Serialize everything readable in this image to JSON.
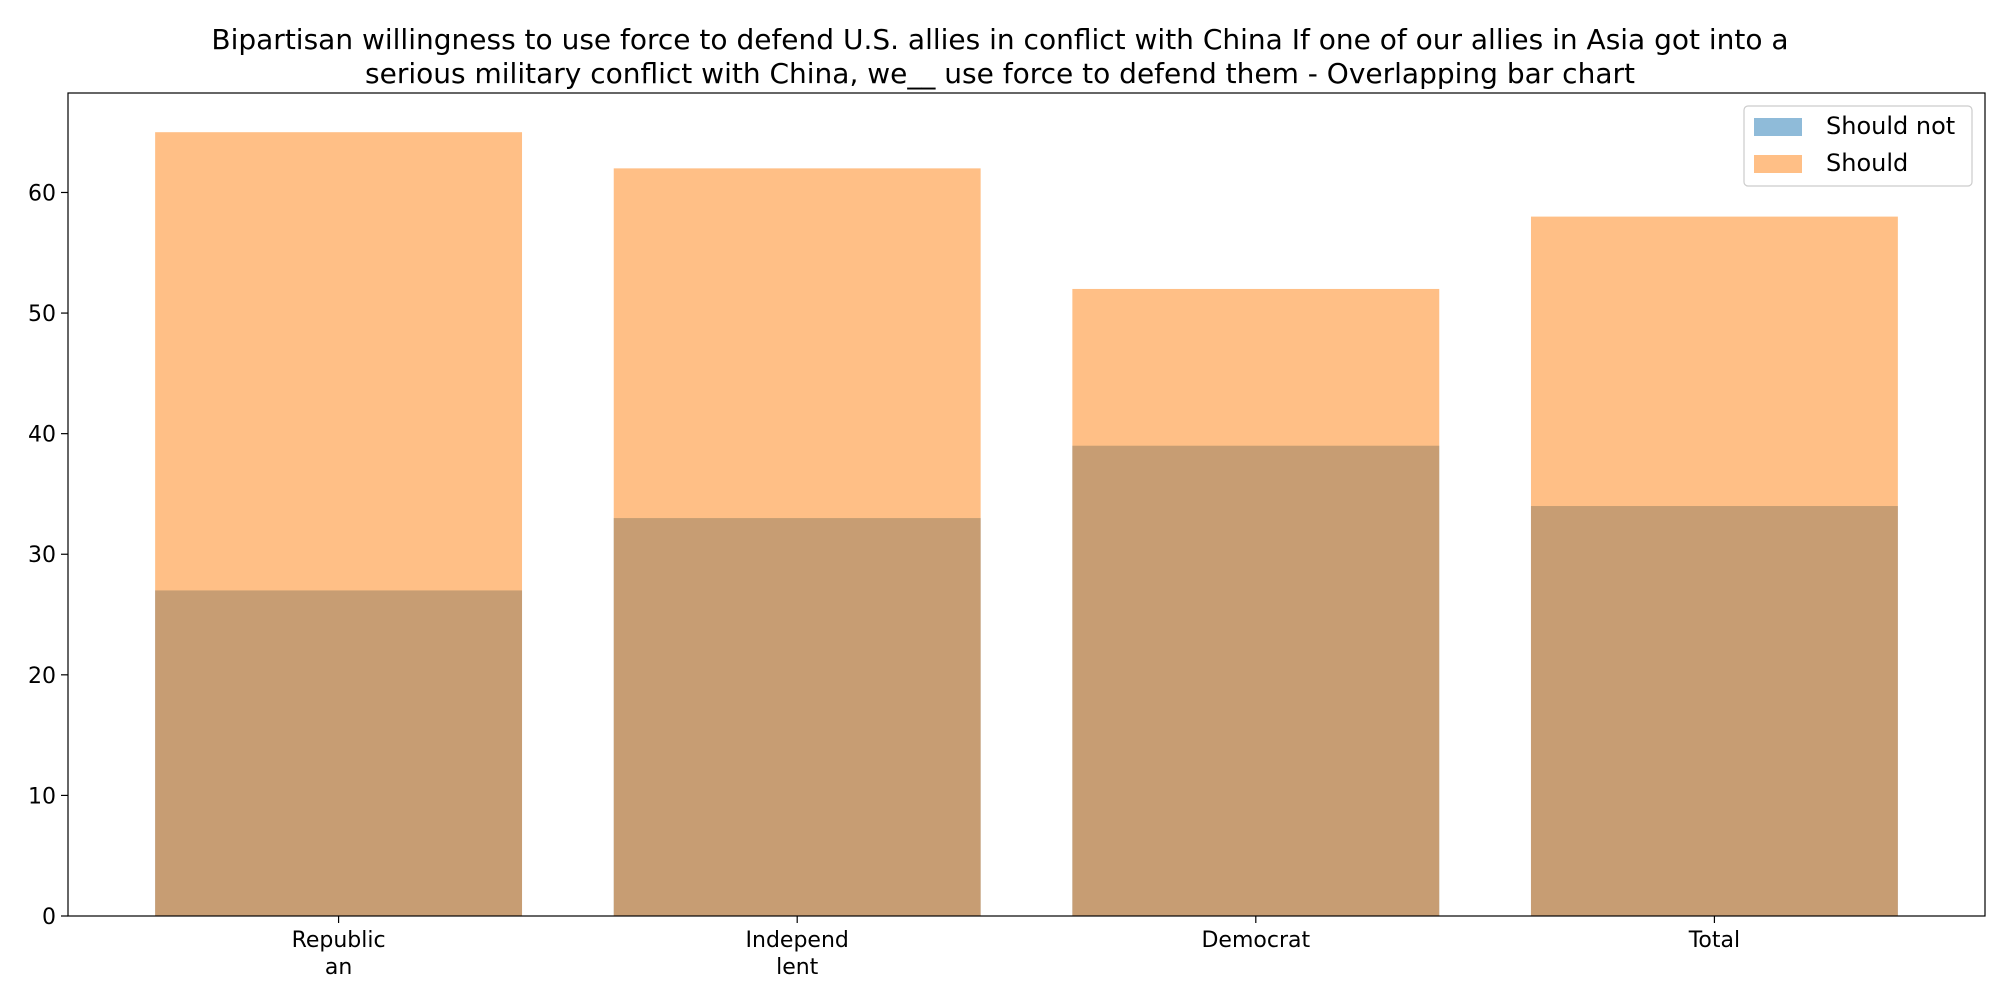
{
  "chart_data": {
    "type": "bar",
    "title_lines": [
      "Bipartisan willingness to use force to defend U.S. allies in conflict with China If one of our allies in Asia got into a",
      "serious military conflict with China, we__ use force to defend them  - Overlapping bar chart"
    ],
    "categories": [
      [
        "Republic",
        "an"
      ],
      [
        "Independ",
        "lent"
      ],
      [
        "Democrat"
      ],
      [
        "Total"
      ]
    ],
    "series": [
      {
        "name": "Should not",
        "values": [
          27,
          33,
          39,
          34
        ],
        "color": "#1f77b4",
        "opacity": 0.5
      },
      {
        "name": "Should",
        "values": [
          65,
          62,
          52,
          58
        ],
        "color": "#ff7f0e",
        "opacity": 0.5
      }
    ],
    "yticks": [
      0,
      10,
      20,
      30,
      40,
      50,
      60
    ],
    "ylim": [
      0,
      68.25
    ],
    "legend_position": "top-right",
    "grid": false
  }
}
